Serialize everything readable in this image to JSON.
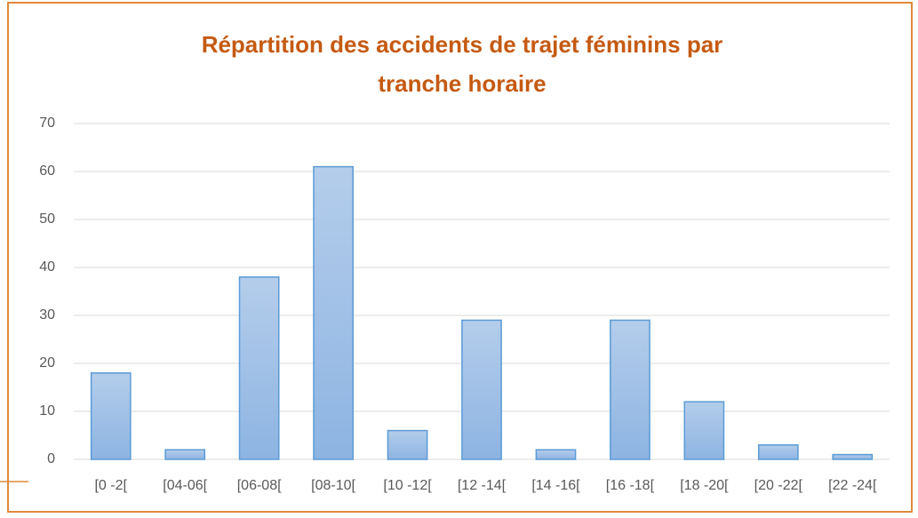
{
  "chart_data": {
    "type": "bar",
    "title": "Répartition des accidents de trajet féminins par tranche horaire",
    "categories": [
      "[0 -2[",
      "[04-06[",
      "[06-08[",
      "[08-10[",
      "[10 -12[",
      "[12 -14[",
      "[14 -16[",
      "[16 -18[",
      "[18 -20[",
      "[20 -22[",
      "[22 -24["
    ],
    "values": [
      18,
      2,
      38,
      61,
      6,
      29,
      2,
      29,
      12,
      3,
      1
    ],
    "color": "#5b9bd5",
    "ylim": [
      0,
      70
    ],
    "yticks": [
      0,
      10,
      20,
      30,
      40,
      50,
      60,
      70
    ],
    "grid": true
  }
}
